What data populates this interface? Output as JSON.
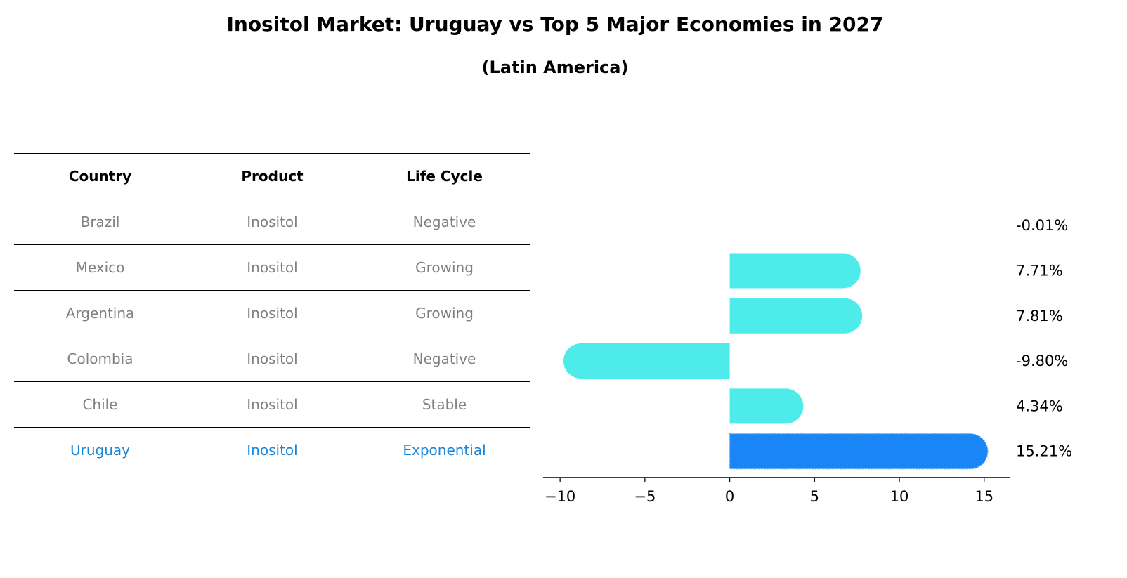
{
  "title": "Inositol Market: Uruguay vs Top 5 Major Economies in 2027",
  "subtitle": "(Latin America)",
  "table": {
    "headers": [
      "Country",
      "Product",
      "Life Cycle"
    ],
    "rows": [
      {
        "country": "Brazil",
        "product": "Inositol",
        "life_cycle": "Negative"
      },
      {
        "country": "Mexico",
        "product": "Inositol",
        "life_cycle": "Growing"
      },
      {
        "country": "Argentina",
        "product": "Inositol",
        "life_cycle": "Growing"
      },
      {
        "country": "Colombia",
        "product": "Inositol",
        "life_cycle": "Negative"
      },
      {
        "country": "Chile",
        "product": "Inositol",
        "life_cycle": "Stable"
      },
      {
        "country": "Uruguay",
        "product": "Inositol",
        "life_cycle": "Exponential"
      }
    ]
  },
  "colors": {
    "bar": "#4deceb",
    "highlight_bar": "#1a86f5",
    "highlight_text": "#1a86d8",
    "muted_text": "#808080"
  },
  "chart_data": {
    "type": "bar",
    "orientation": "horizontal",
    "categories": [
      "Brazil",
      "Mexico",
      "Argentina",
      "Colombia",
      "Chile",
      "Uruguay"
    ],
    "values": [
      -0.01,
      7.71,
      7.81,
      -9.8,
      4.34,
      15.21
    ],
    "value_labels": [
      "-0.01%",
      "7.71%",
      "7.81%",
      "-9.80%",
      "4.34%",
      "15.21%"
    ],
    "highlight": "Uruguay",
    "xlim": [
      -11,
      16.5
    ],
    "xticks": [
      -10,
      -5,
      0,
      5,
      10,
      15
    ],
    "xtick_labels": [
      "−10",
      "−5",
      "0",
      "5",
      "10",
      "15"
    ],
    "grid": false
  }
}
